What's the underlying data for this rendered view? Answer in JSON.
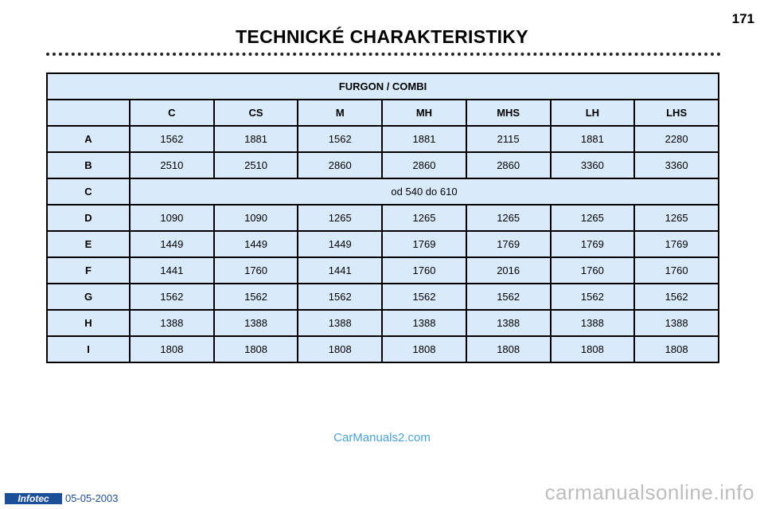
{
  "page_number": "171",
  "title": "TECHNICKÉ CHARAKTERISTIKY",
  "table": {
    "group_title": "FURGON / COMBI",
    "columns": [
      "C",
      "CS",
      "M",
      "MH",
      "MHS",
      "LH",
      "LHS"
    ],
    "rows": [
      {
        "label": "A",
        "values": [
          "1562",
          "1881",
          "1562",
          "1881",
          "2115",
          "1881",
          "2280"
        ]
      },
      {
        "label": "B",
        "values": [
          "2510",
          "2510",
          "2860",
          "2860",
          "2860",
          "3360",
          "3360"
        ]
      },
      {
        "label": "C",
        "span_value": "od 540 do 610"
      },
      {
        "label": "D",
        "values": [
          "1090",
          "1090",
          "1265",
          "1265",
          "1265",
          "1265",
          "1265"
        ]
      },
      {
        "label": "E",
        "values": [
          "1449",
          "1449",
          "1449",
          "1769",
          "1769",
          "1769",
          "1769"
        ]
      },
      {
        "label": "F",
        "values": [
          "1441",
          "1760",
          "1441",
          "1760",
          "2016",
          "1760",
          "1760"
        ]
      },
      {
        "label": "G",
        "values": [
          "1562",
          "1562",
          "1562",
          "1562",
          "1562",
          "1562",
          "1562"
        ]
      },
      {
        "label": "H",
        "values": [
          "1388",
          "1388",
          "1388",
          "1388",
          "1388",
          "1388",
          "1388"
        ]
      },
      {
        "label": "I",
        "values": [
          "1808",
          "1808",
          "1808",
          "1808",
          "1808",
          "1808",
          "1808"
        ]
      }
    ]
  },
  "watermark": "CarManuals2.com",
  "footer": {
    "logo_text": "Infotec",
    "date": "05-05-2003",
    "site": "carmanualsonline.info"
  },
  "colors": {
    "table_bg": "#d9ebfb",
    "watermark": "#4aa3d8",
    "logo_bg": "#1b4f9a"
  }
}
